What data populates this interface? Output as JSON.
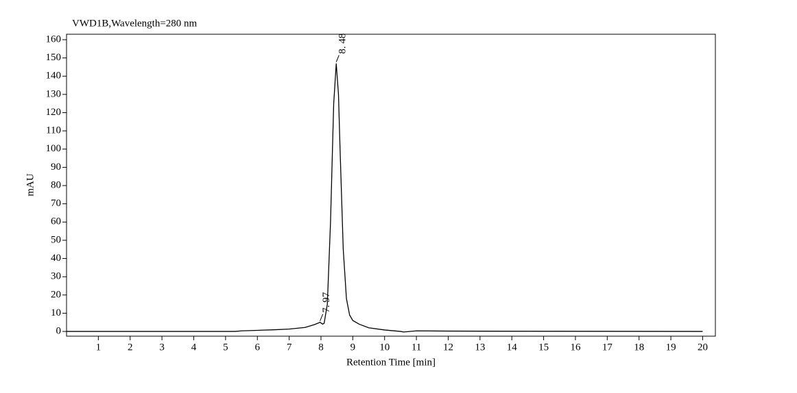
{
  "chart_data": {
    "type": "line",
    "title": "VWD1B,Wavelength=280 nm",
    "x_label": "Retention Time [min]",
    "y_label": "mAU",
    "x": [
      0,
      5.3,
      5.5,
      6,
      6.5,
      7,
      7.5,
      7.8,
      7.97,
      8.05,
      8.1,
      8.2,
      8.3,
      8.4,
      8.48,
      8.55,
      8.6,
      8.7,
      8.8,
      8.9,
      9.0,
      9.2,
      9.5,
      10,
      10.5,
      10.6,
      11,
      12,
      14,
      20
    ],
    "values": [
      0,
      0,
      0.3,
      0.6,
      0.9,
      1.3,
      2.2,
      3.8,
      5,
      4,
      4.5,
      15,
      60,
      125,
      147,
      130,
      100,
      45,
      18,
      9,
      6,
      4,
      2,
      0.8,
      0,
      -0.3,
      0.3,
      0.2,
      0.1,
      0
    ],
    "color": "#000000",
    "xlim": [
      0,
      20.4
    ],
    "ylim": [
      -2.6,
      163
    ],
    "xticks": [
      1,
      2,
      3,
      4,
      5,
      6,
      7,
      8,
      9,
      10,
      11,
      12,
      13,
      14,
      15,
      16,
      17,
      18,
      19,
      20
    ],
    "yticks": [
      0,
      10,
      20,
      30,
      40,
      50,
      60,
      70,
      80,
      90,
      100,
      110,
      120,
      130,
      140,
      150,
      160
    ],
    "peaks": [
      {
        "x": 7.97,
        "y": 5,
        "label": "7. 97"
      },
      {
        "x": 8.48,
        "y": 147,
        "label": "8. 48"
      }
    ]
  }
}
